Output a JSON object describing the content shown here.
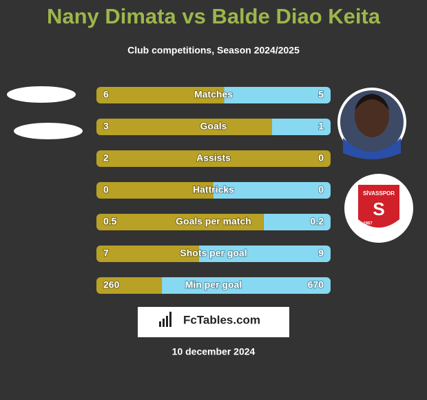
{
  "header": {
    "title": "Nany Dimata vs Balde Diao Keita",
    "subtitle": "Club competitions, Season 2024/2025"
  },
  "rows": [
    {
      "label": "Matches",
      "left": 6,
      "right": 5
    },
    {
      "label": "Goals",
      "left": 3,
      "right": 1
    },
    {
      "label": "Assists",
      "left": 2,
      "right": 0
    },
    {
      "label": "Hattricks",
      "left": 0,
      "right": 0
    },
    {
      "label": "Goals per match",
      "left": 0.5,
      "right": 0.2
    },
    {
      "label": "Shots per goal",
      "left": 7,
      "right": 9
    },
    {
      "label": "Min per goal",
      "left": 260,
      "right": 670
    }
  ],
  "club_logo": {
    "name": "SİVASSPOR",
    "year": "1967"
  },
  "brand": "FcTables.com",
  "date": "10 december 2024"
}
